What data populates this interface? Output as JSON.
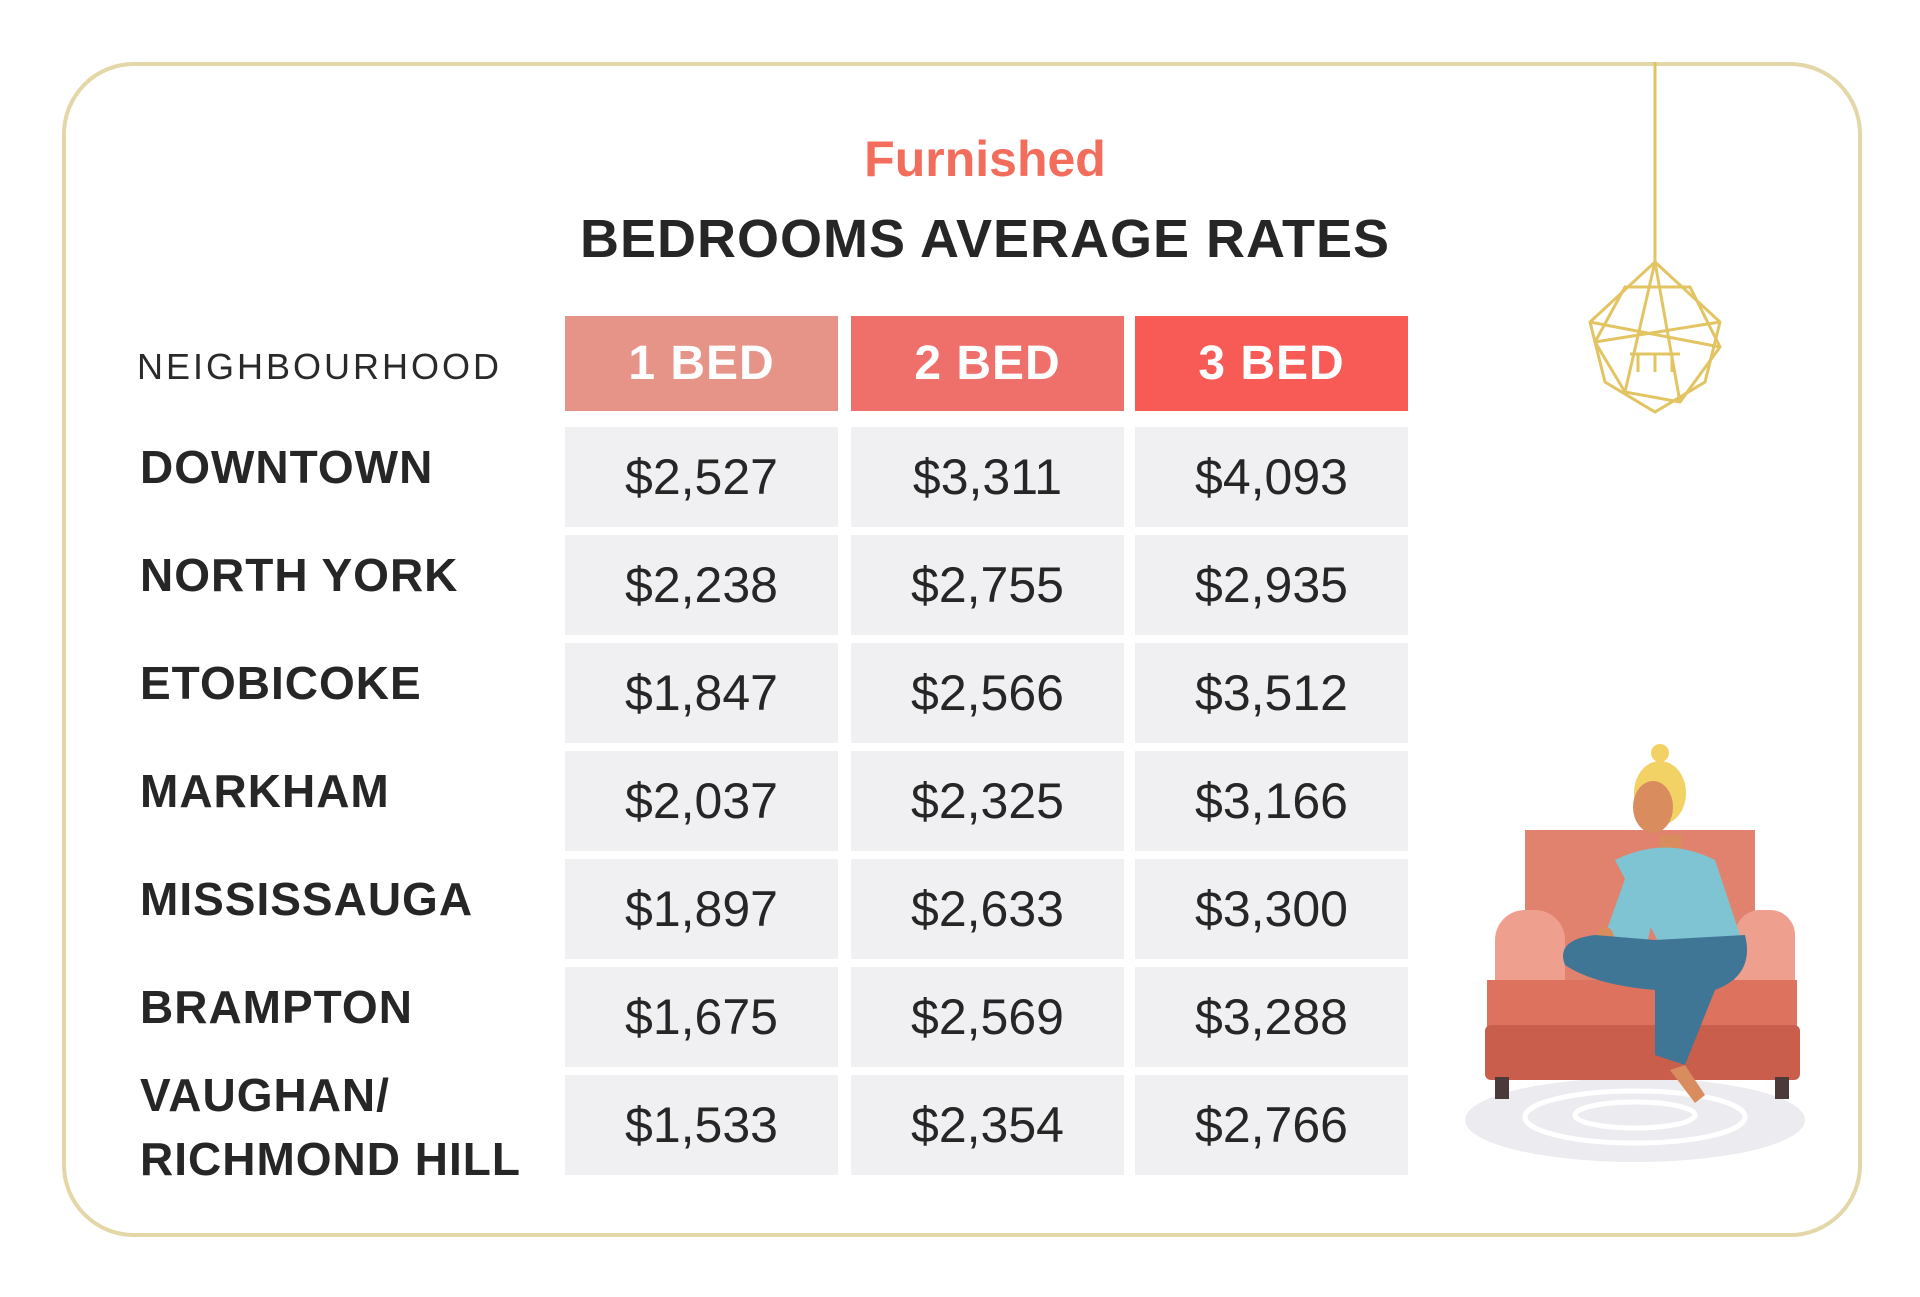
{
  "subtitle": "Furnished",
  "title": "BEDROOMS AVERAGE RATES",
  "chart_data": {
    "type": "table",
    "row_header": "NEIGHBOURHOOD",
    "columns": [
      "1 BED",
      "2 BED",
      "3 BED"
    ],
    "column_colors": [
      "#e79488",
      "#ef706b",
      "#f85b55"
    ],
    "rows": [
      {
        "neighbourhood": "DOWNTOWN",
        "values": [
          "$2,527",
          "$3,311",
          "$4,093"
        ]
      },
      {
        "neighbourhood": "NORTH YORK",
        "values": [
          "$2,238",
          "$2,755",
          "$2,935"
        ]
      },
      {
        "neighbourhood": "ETOBICOKE",
        "values": [
          "$1,847",
          "$2,566",
          "$3,512"
        ]
      },
      {
        "neighbourhood": "MARKHAM",
        "values": [
          "$2,037",
          "$2,325",
          "$3,166"
        ]
      },
      {
        "neighbourhood": "MISSISSAUGA",
        "values": [
          "$1,897",
          "$2,633",
          "$3,300"
        ]
      },
      {
        "neighbourhood": "BRAMPTON",
        "values": [
          "$1,675",
          "$2,569",
          "$3,288"
        ]
      },
      {
        "neighbourhood": "VAUGHAN/ RICHMOND HILL",
        "values": [
          "$1,533",
          "$2,354",
          "$2,766"
        ]
      }
    ]
  },
  "icons": {
    "chandelier": "chandelier-icon",
    "person_on_sofa": "person-on-sofa-illustration"
  }
}
